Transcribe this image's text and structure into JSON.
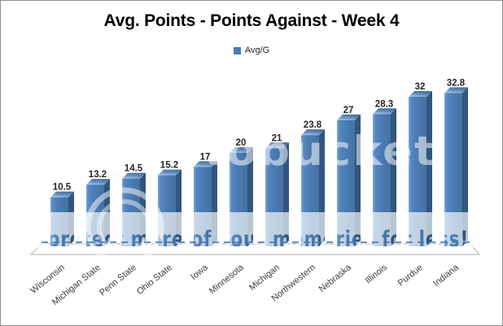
{
  "window": {
    "background": "#ffffff",
    "border_color": "#8f8f8f"
  },
  "chart_data": {
    "type": "bar",
    "style": "3d-column",
    "title": "Avg. Points - Points Against - Week 4",
    "legend": {
      "label": "Avg/G",
      "position": "top-center",
      "swatch_color": "#4a7cba"
    },
    "categories": [
      "Wisconsin",
      "Michigan State",
      "Penn State",
      "Ohio State",
      "Iowa",
      "Minnesota",
      "Michigan",
      "Northwestern",
      "Nebraska",
      "Illinois",
      "Purdue",
      "Indiana"
    ],
    "values": [
      10.5,
      13.2,
      14.5,
      15.2,
      17,
      20,
      21,
      23.8,
      27,
      28.3,
      32,
      32.8
    ],
    "value_labels_shown": true,
    "xlabel": "",
    "ylabel": "",
    "ylim": [
      0,
      35
    ],
    "gridlines": false,
    "y_axis_shown": false,
    "category_label_rotation_deg": -39,
    "bar_colors": {
      "front": "#4b7cb5",
      "front_highlight": "#7da6d6",
      "side": "#315680",
      "top_light": "#b9cde7",
      "top_dark": "#4a6f9d"
    },
    "floor_stroke": "#bdbdbd",
    "value_label_color": "#262626",
    "axis_label_color": "#3d3d3d"
  },
  "watermark": {
    "logo_text": "photobucket",
    "promo_text": "protect more of your memories for less!",
    "logo_color": "#ffffff",
    "promo_color": "#4a7cba"
  }
}
